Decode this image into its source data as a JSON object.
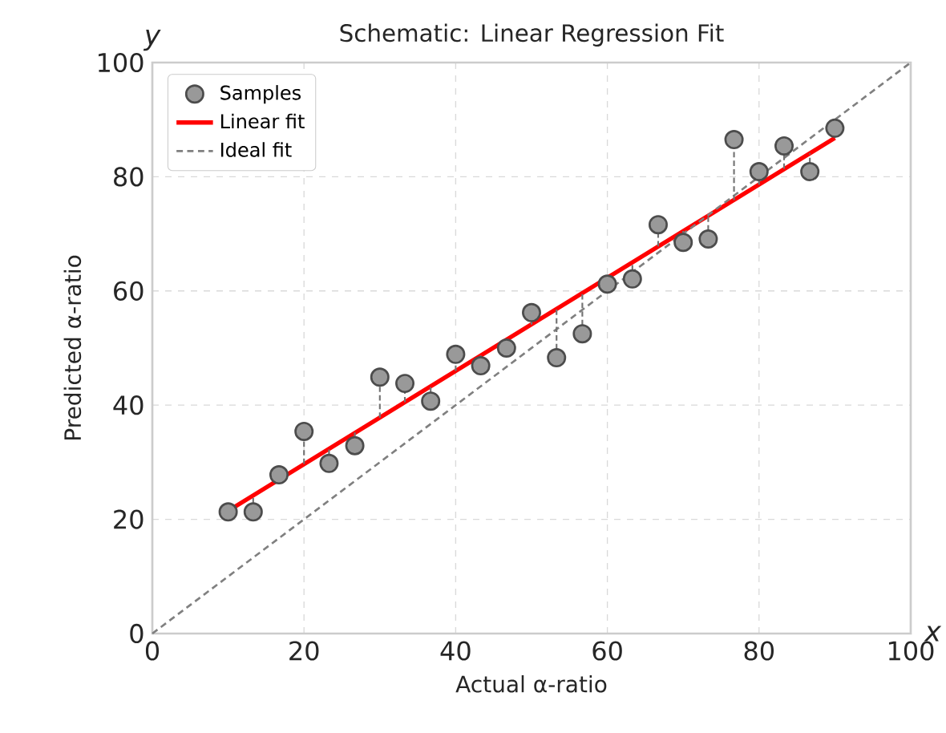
{
  "chart_data": {
    "type": "scatter",
    "title": "Schematic: Linear Regression Fit",
    "xlabel": "Actual α-ratio",
    "ylabel": "Predicted α-ratio",
    "xlim": [
      0,
      100
    ],
    "ylim": [
      0,
      100
    ],
    "xticks": [
      0,
      20,
      40,
      60,
      80,
      100
    ],
    "yticks": [
      0,
      20,
      40,
      60,
      80,
      100
    ],
    "grid": true,
    "legend": "top left",
    "annotations": [
      "x",
      "y"
    ],
    "series": [
      {
        "name": "Samples",
        "marker": "circle",
        "color": "#999999",
        "x": [
          10,
          13.3,
          16.7,
          20,
          23.3,
          26.7,
          30,
          33.3,
          36.7,
          40,
          43.3,
          46.7,
          50,
          53.3,
          56.7,
          60,
          63.3,
          66.7,
          70,
          73.3,
          76.7,
          80,
          83.3,
          86.7,
          90
        ],
        "values": [
          21.3,
          21.3,
          27.8,
          35.4,
          29.8,
          32.9,
          44.9,
          43.8,
          40.7,
          48.9,
          46.9,
          50,
          56.2,
          48.3,
          52.5,
          61.2,
          62.1,
          71.6,
          68.5,
          69.1,
          86.5,
          80.9,
          85.4,
          80.9,
          88.5
        ],
        "errors": [
          null,
          [
            21.3,
            24.2
          ],
          null,
          [
            29.7,
            35.4
          ],
          [
            29.8,
            32.4
          ],
          [
            32.9,
            35.2
          ],
          [
            37.8,
            44.9
          ],
          [
            40.5,
            43.8
          ],
          [
            40.7,
            43.3
          ],
          [
            46.0,
            48.9
          ],
          [
            46.9,
            48.7
          ],
          [
            50,
            51.4
          ],
          [
            54.1,
            56.2
          ],
          [
            48.3,
            56.8
          ],
          [
            52.5,
            59.6
          ],
          [
            61.2,
            62.3
          ],
          [
            62.1,
            65.0
          ],
          [
            67.8,
            71.6
          ],
          [
            68.5,
            70.5
          ],
          [
            69.1,
            73.2
          ],
          [
            75.9,
            86.5
          ],
          [
            78.6,
            80.9
          ],
          [
            81.4,
            85.4
          ],
          [
            80.9,
            84.1
          ],
          [
            86.8,
            88.5
          ]
        ]
      },
      {
        "name": "Linear fit",
        "type": "line",
        "marker": "none",
        "line_style": "solid",
        "color": "#ff0000",
        "x": [
          10,
          90
        ],
        "values": [
          21.5,
          86.8
        ]
      },
      {
        "name": "Ideal fit",
        "type": "line",
        "marker": "none",
        "line_style": "dashed",
        "color": "#808080",
        "x": [
          0,
          100
        ],
        "values": [
          0,
          100
        ]
      }
    ]
  }
}
